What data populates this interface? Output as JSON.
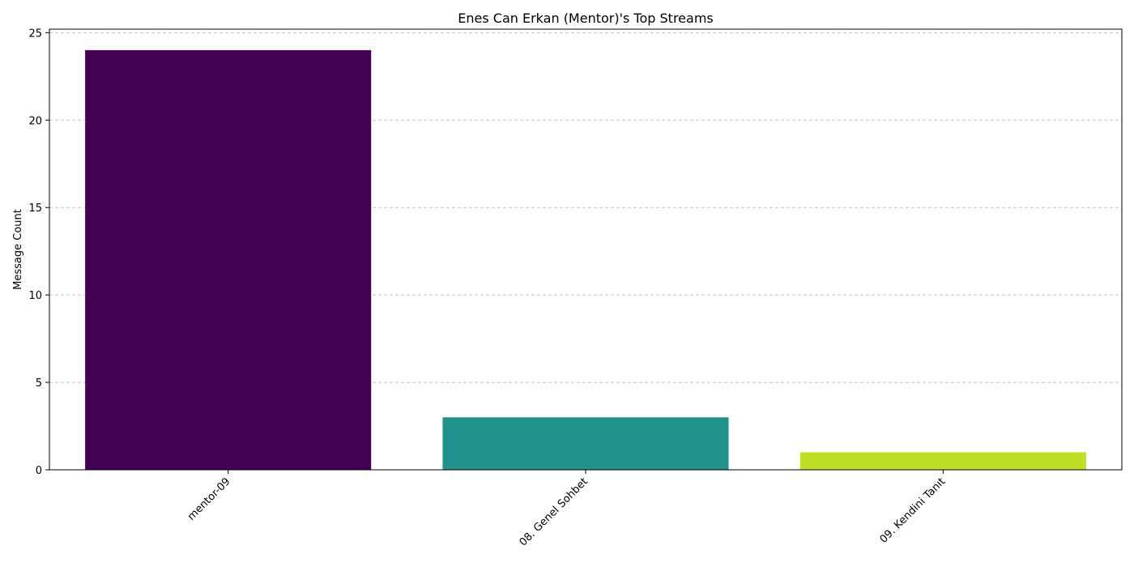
{
  "chart_data": {
    "type": "bar",
    "title": "Enes Can Erkan (Mentor)'s Top Streams",
    "xlabel": "",
    "ylabel": "Message Count",
    "categories": [
      "mentor-09",
      "08. Genel Sohbet",
      "09. Kendini Tanıt"
    ],
    "values": [
      24,
      3,
      1
    ],
    "colors": [
      "#440154",
      "#21918c",
      "#bddf26"
    ],
    "ylim": [
      0,
      25.2
    ],
    "yticks": [
      0,
      5,
      10,
      15,
      20,
      25
    ],
    "grid": "y-dashed",
    "legend": "none"
  }
}
